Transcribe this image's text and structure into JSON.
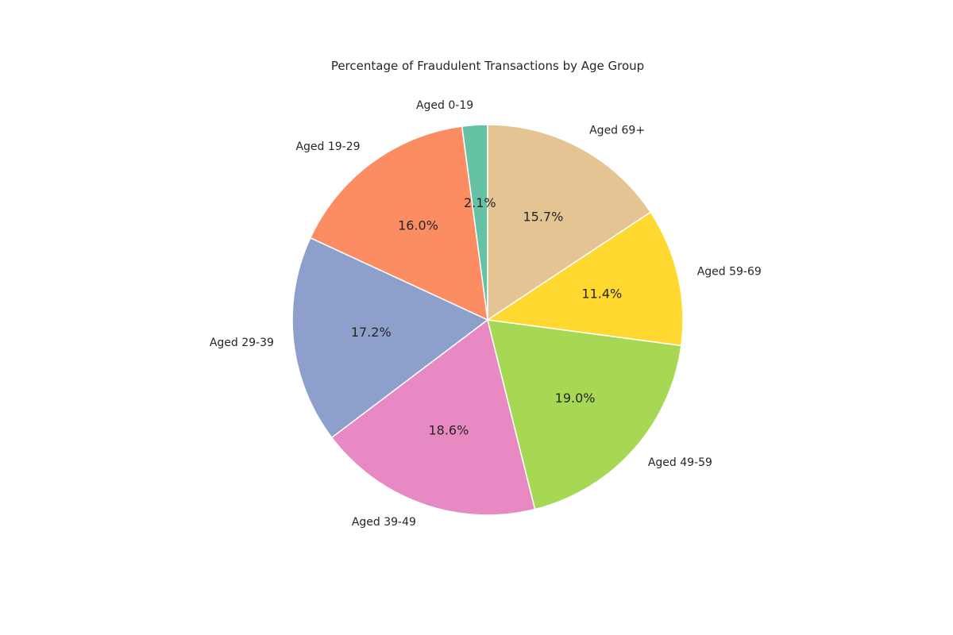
{
  "chart_data": {
    "type": "pie",
    "title": "Percentage of Fraudulent Transactions by Age Group",
    "categories": [
      "Aged 0-19",
      "Aged 19-29",
      "Aged 29-39",
      "Aged 39-49",
      "Aged 49-59",
      "Aged 59-69",
      "Aged 69+"
    ],
    "values": [
      2.1,
      16.0,
      17.2,
      18.6,
      19.0,
      11.4,
      15.7
    ],
    "value_labels": [
      "2.1%",
      "16.0%",
      "17.2%",
      "18.6%",
      "19.0%",
      "11.4%",
      "15.7%"
    ],
    "colors": [
      "#66c2a5",
      "#fc8d62",
      "#8da0cb",
      "#e78ac3",
      "#a6d854",
      "#ffd92f",
      "#e5c494"
    ],
    "start_angle_deg": 90,
    "direction": "counterclockwise",
    "legend": "none"
  }
}
